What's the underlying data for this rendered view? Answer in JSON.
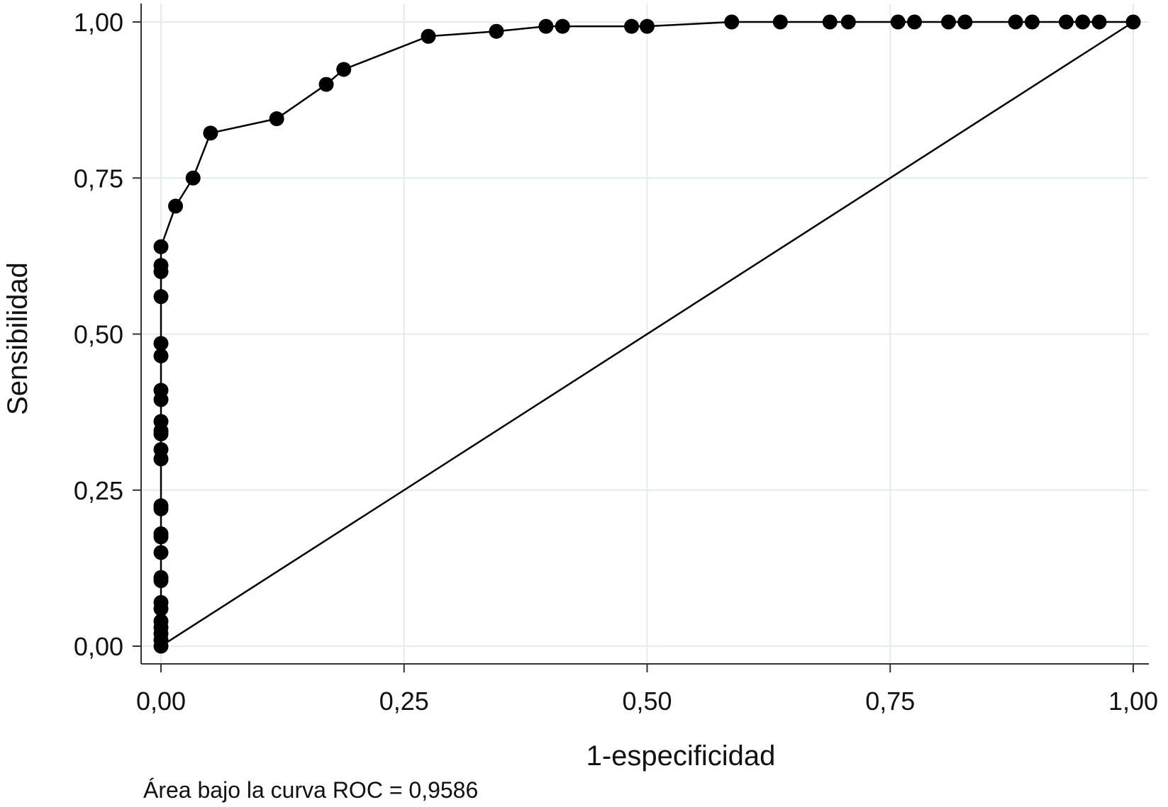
{
  "chart_data": {
    "type": "line",
    "title": "",
    "xlabel": "1-especificidad",
    "ylabel": "Sensibilidad",
    "xlim": [
      0,
      1
    ],
    "ylim": [
      0,
      1
    ],
    "x_ticks": [
      "0,00",
      "0,25",
      "0,50",
      "0,75",
      "1,00"
    ],
    "y_ticks": [
      "0,00",
      "0,25",
      "0,50",
      "0,75",
      "1,00"
    ],
    "grid": true,
    "legend": "none",
    "annotation": "Área bajo la curva ROC = 0,9586",
    "colors": {
      "line": "#000000",
      "grid": "#e4ecec",
      "axis": "#333333"
    },
    "series": [
      {
        "values": [
          [
            0.0,
            0.0
          ],
          [
            0.0,
            0.01
          ],
          [
            0.0,
            0.02
          ],
          [
            0.0,
            0.03
          ],
          [
            0.0,
            0.04
          ],
          [
            0.0,
            0.06
          ],
          [
            0.0,
            0.07
          ],
          [
            0.0,
            0.105
          ],
          [
            0.0,
            0.11
          ],
          [
            0.0,
            0.15
          ],
          [
            0.0,
            0.175
          ],
          [
            0.0,
            0.18
          ],
          [
            0.0,
            0.22
          ],
          [
            0.0,
            0.225
          ],
          [
            0.0,
            0.3
          ],
          [
            0.0,
            0.315
          ],
          [
            0.0,
            0.34
          ],
          [
            0.0,
            0.345
          ],
          [
            0.0,
            0.36
          ],
          [
            0.0,
            0.395
          ],
          [
            0.0,
            0.41
          ],
          [
            0.0,
            0.465
          ],
          [
            0.0,
            0.485
          ],
          [
            0.0,
            0.56
          ],
          [
            0.0,
            0.6
          ],
          [
            0.0,
            0.61
          ],
          [
            0.0,
            0.64
          ],
          [
            0.015,
            0.705
          ],
          [
            0.033,
            0.75
          ],
          [
            0.051,
            0.822
          ],
          [
            0.119,
            0.845
          ],
          [
            0.17,
            0.9
          ],
          [
            0.188,
            0.924
          ],
          [
            0.275,
            0.977
          ],
          [
            0.345,
            0.985
          ],
          [
            0.396,
            0.993
          ],
          [
            0.413,
            0.993
          ],
          [
            0.484,
            0.993
          ],
          [
            0.5,
            0.993
          ],
          [
            0.587,
            1.0
          ],
          [
            0.637,
            1.0
          ],
          [
            0.688,
            1.0
          ],
          [
            0.707,
            1.0
          ],
          [
            0.758,
            1.0
          ],
          [
            0.775,
            1.0
          ],
          [
            0.81,
            1.0
          ],
          [
            0.827,
            1.0
          ],
          [
            0.879,
            1.0
          ],
          [
            0.896,
            1.0
          ],
          [
            0.931,
            1.0
          ],
          [
            0.948,
            1.0
          ],
          [
            0.965,
            1.0
          ],
          [
            1.0,
            1.0
          ]
        ]
      }
    ],
    "reference_line": [
      [
        0,
        0
      ],
      [
        1,
        1
      ]
    ]
  }
}
